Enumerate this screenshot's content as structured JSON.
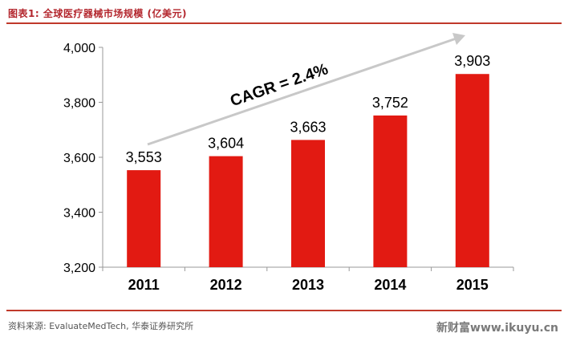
{
  "header": {
    "title": "图表1: 全球医疗器械市场规模 (亿美元)"
  },
  "footer": {
    "source": "资料来源: EvaluateMedTech, 华泰证券研究所",
    "watermark": "新财富www.ikuyu.cn"
  },
  "colors": {
    "bar": "#e21a12",
    "arrow": "#c8c8c8",
    "axis": "#999999",
    "accent_rule": "#c0392b"
  },
  "chart_data": {
    "type": "bar",
    "title": "",
    "xlabel": "",
    "ylabel": "",
    "categories": [
      "2011",
      "2012",
      "2013",
      "2014",
      "2015"
    ],
    "values": [
      3553,
      3604,
      3663,
      3752,
      3903
    ],
    "value_labels": [
      "3,553",
      "3,604",
      "3,663",
      "3,752",
      "3,903"
    ],
    "ylim": [
      3200,
      4000
    ],
    "yticks": [
      3200,
      3400,
      3600,
      3800,
      4000
    ],
    "ytick_labels": [
      "3,200",
      "3,400",
      "3,600",
      "3,800",
      "4,000"
    ],
    "grid": false,
    "legend": "none",
    "annotation": "CAGR = 2.4%"
  }
}
